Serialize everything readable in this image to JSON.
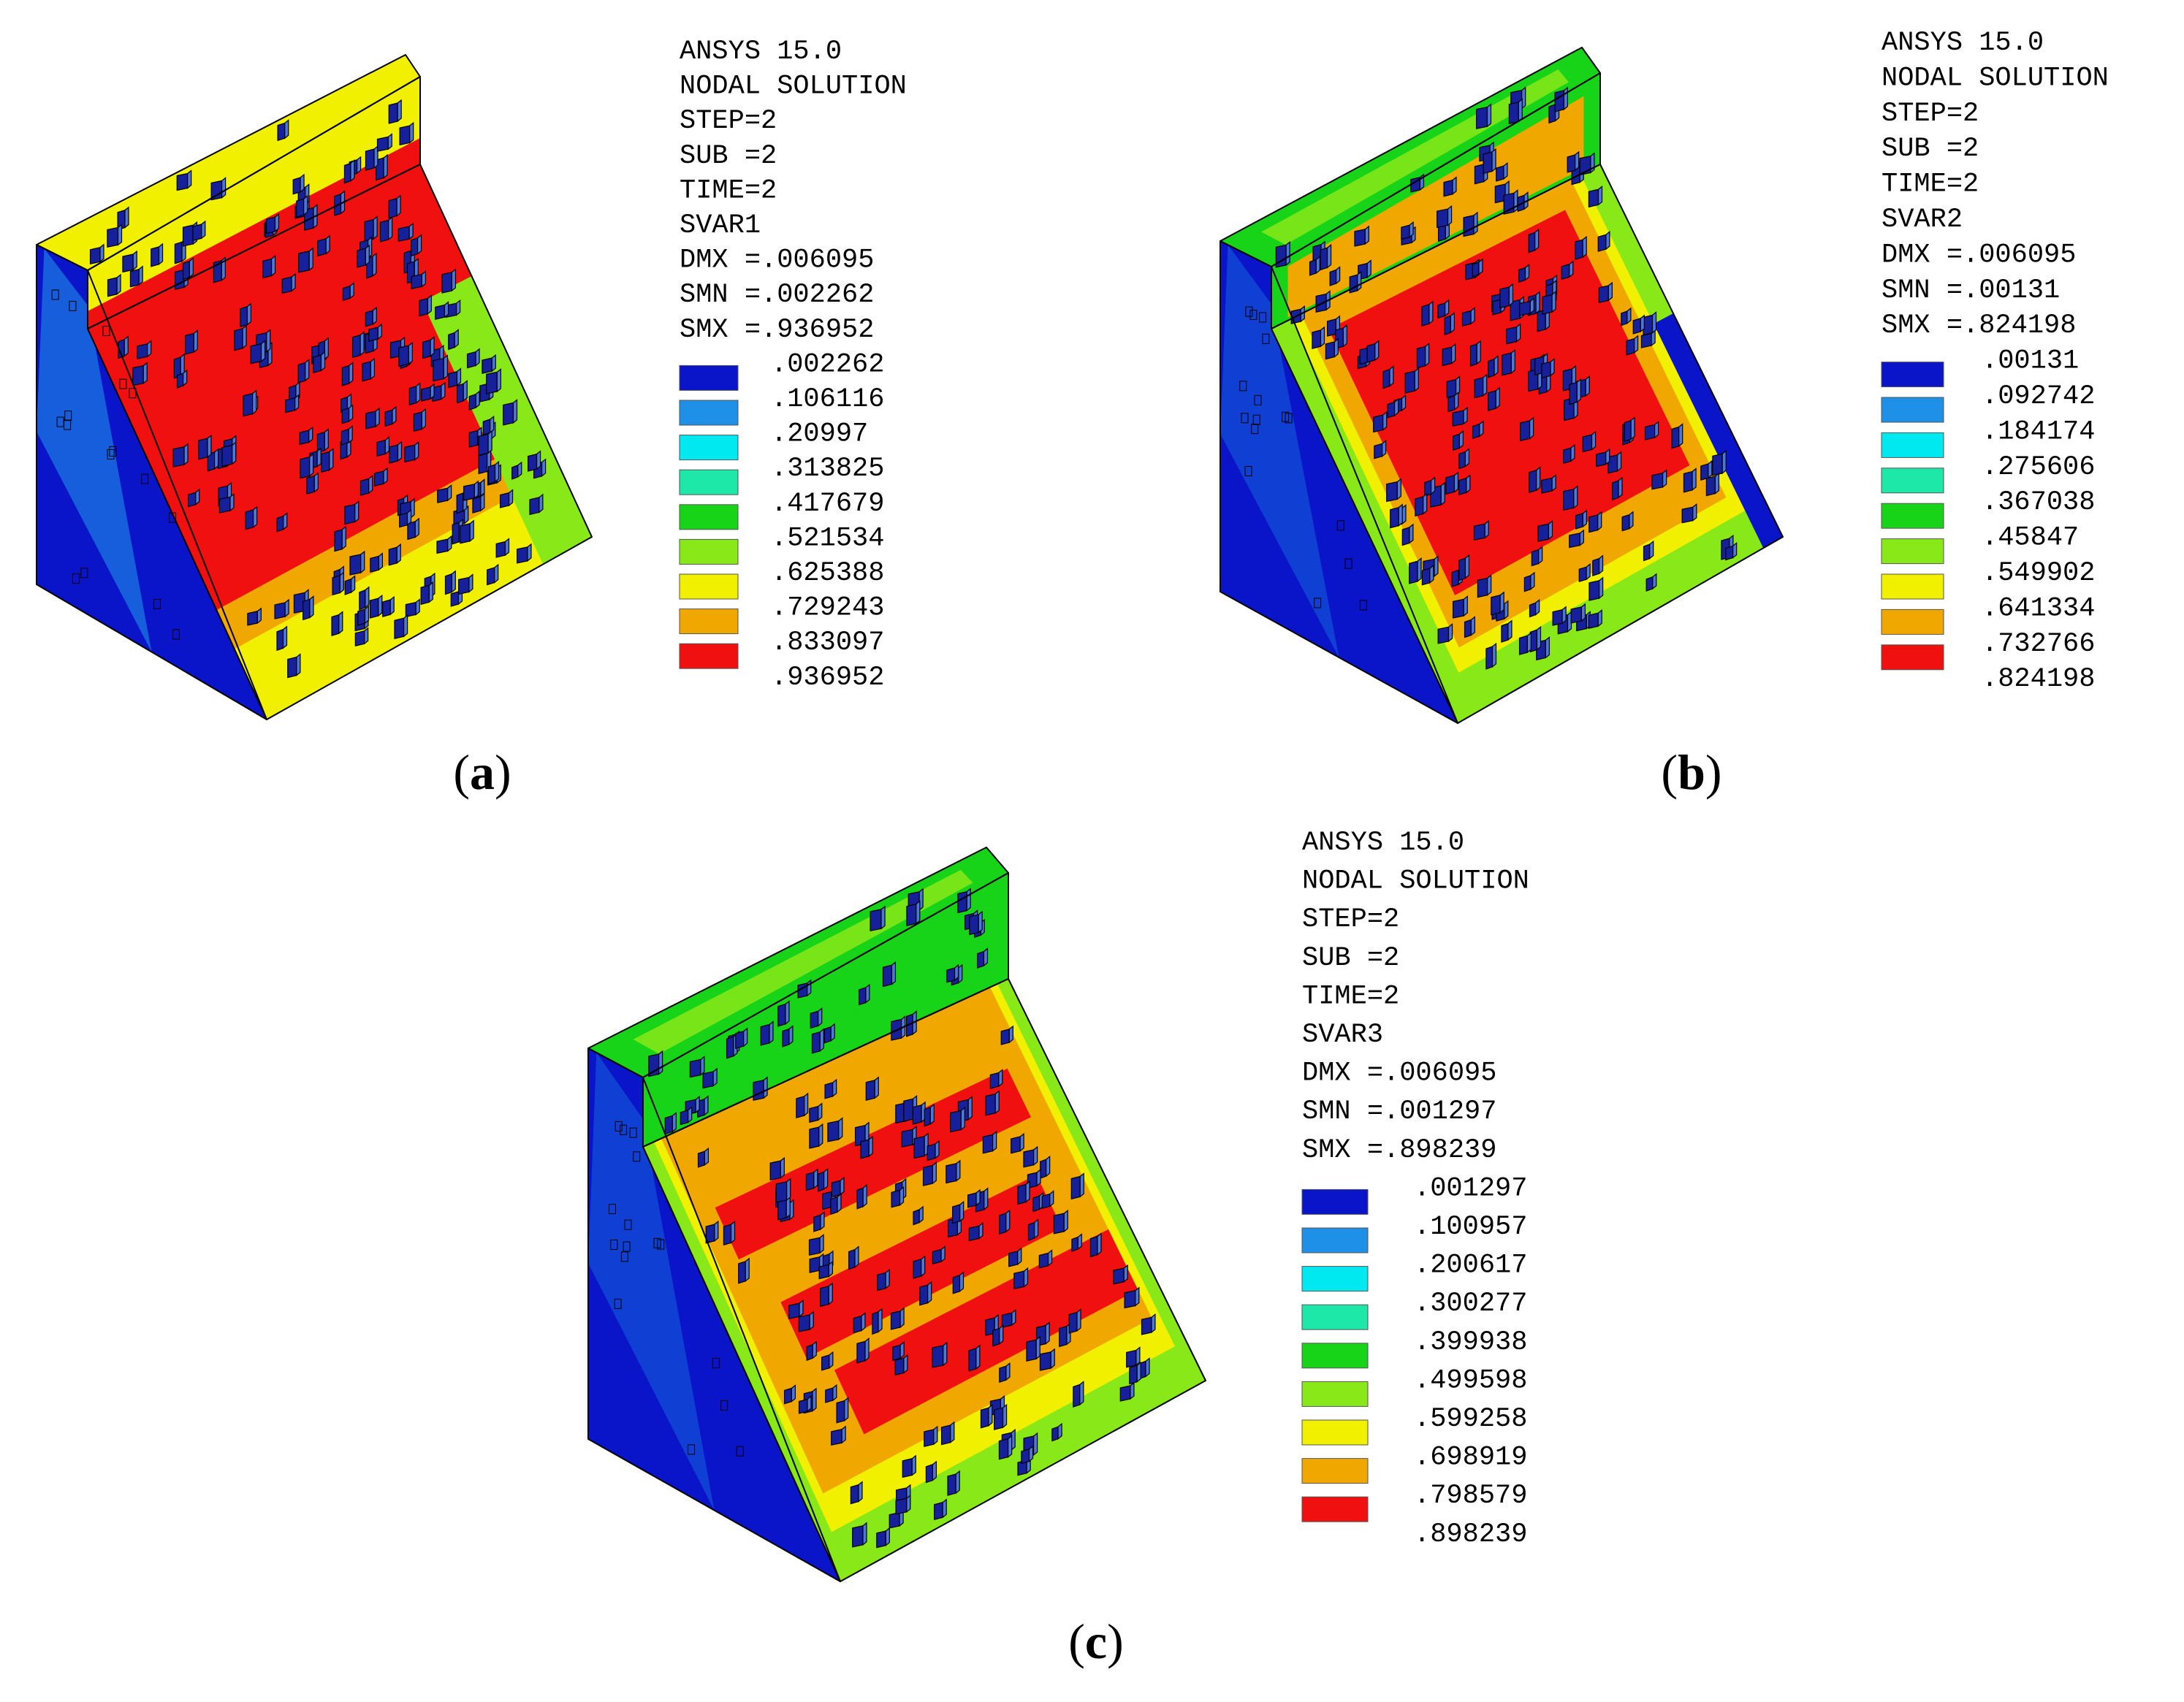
{
  "panels": [
    {
      "id": "a",
      "caption": "(a)",
      "caption_letter": "a",
      "header": [
        "ANSYS 15.0",
        "NODAL SOLUTION",
        "STEP=2",
        "SUB =2",
        "TIME=2",
        "SVAR1"
      ],
      "stats": [
        "DMX =.006095",
        "SMN =.002262",
        "SMX =.936952"
      ],
      "legend_values": [
        ".002262",
        ".106116",
        ".20997",
        ".313825",
        ".417679",
        ".521534",
        ".625388",
        ".729243",
        ".833097",
        ".936952"
      ]
    },
    {
      "id": "b",
      "caption": "(b)",
      "caption_letter": "b",
      "header": [
        "ANSYS 15.0",
        "NODAL SOLUTION",
        "STEP=2",
        "SUB =2",
        "TIME=2",
        "SVAR2"
      ],
      "stats": [
        "DMX =.006095",
        "SMN =.00131",
        "SMX =.824198"
      ],
      "legend_values": [
        ".00131",
        ".092742",
        ".184174",
        ".275606",
        ".367038",
        ".45847",
        ".549902",
        ".641334",
        ".732766",
        ".824198"
      ]
    },
    {
      "id": "c",
      "caption": "(c)",
      "caption_letter": "c",
      "header": [
        "ANSYS 15.0",
        "NODAL SOLUTION",
        "STEP=2",
        "SUB =2",
        "TIME=2",
        "SVAR3"
      ],
      "stats": [
        "DMX =.006095",
        "SMN =.001297",
        "SMX =.898239"
      ],
      "legend_values": [
        ".001297",
        ".100957",
        ".200617",
        ".300277",
        ".399938",
        ".499598",
        ".599258",
        ".698919",
        ".798579",
        ".898239"
      ]
    }
  ],
  "legend_colors": [
    "#0a14c8",
    "#1e90e8",
    "#00e8f0",
    "#1ee8a8",
    "#18d418",
    "#88e818",
    "#f0f000",
    "#f0a800",
    "#f01010"
  ]
}
